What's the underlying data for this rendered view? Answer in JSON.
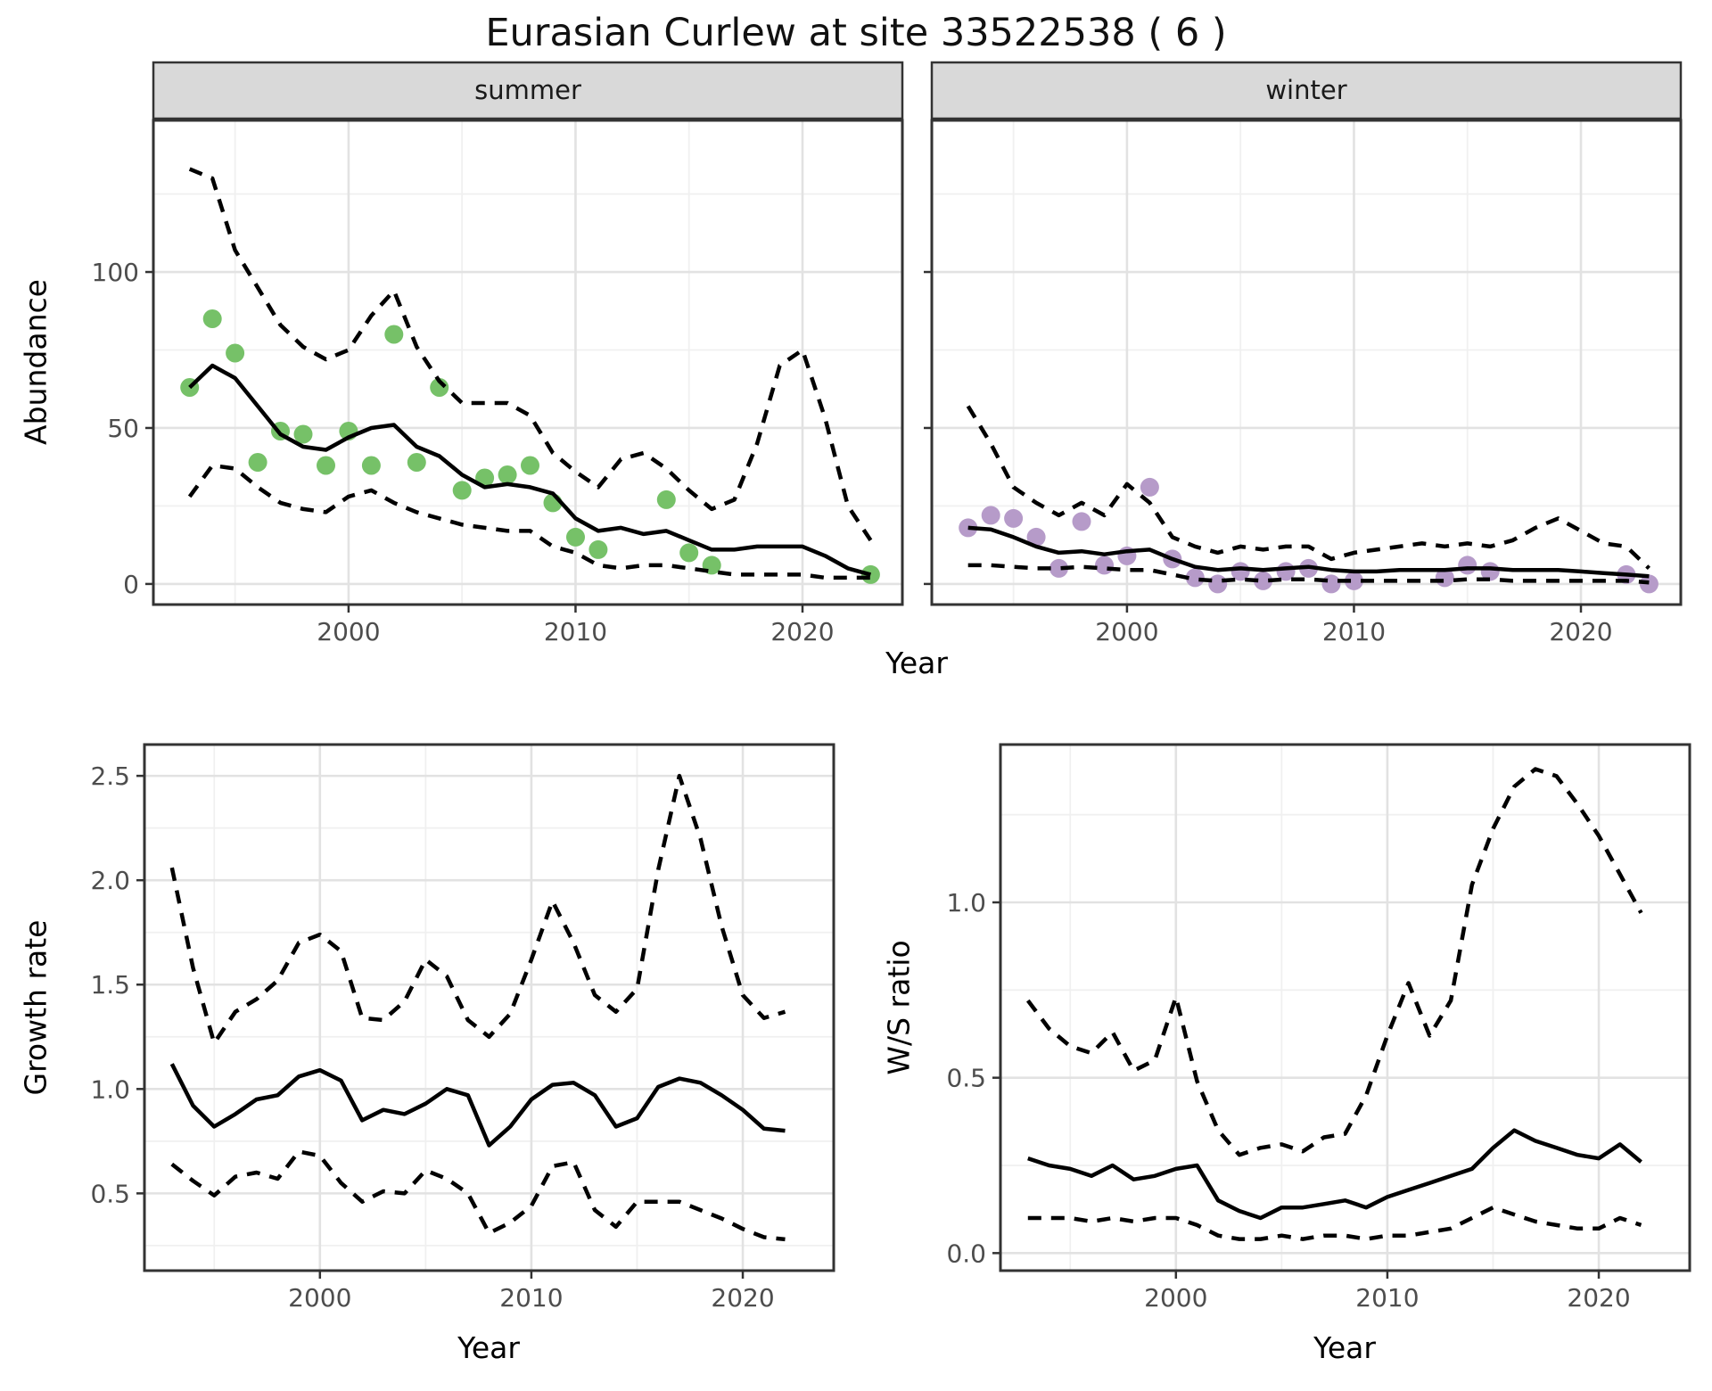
{
  "figure": {
    "title": "Eurasian Curlew at site 33522538 ( 6 )",
    "top_xlabel": "Year",
    "bottom_left_xlabel": "Year",
    "bottom_right_xlabel": "Year"
  },
  "colors": {
    "summer_points": "#76C168",
    "winter_points": "#B69BC9",
    "line": "#000000",
    "strip_bg": "#D9D9D9",
    "panel_border": "#333333",
    "grid_major": "#E2E2E2",
    "grid_minor": "#F0F0F0",
    "tick_text": "#4D4D4D"
  },
  "chart_data": [
    {
      "panel_id": "abundance-summer",
      "type": "line",
      "facet": "summer",
      "xlabel": "Year",
      "ylabel": "Abundance",
      "xlim": [
        1991.4,
        2024.4
      ],
      "ylim": [
        -6.6,
        148.6
      ],
      "xticks": [
        2000,
        2010,
        2020
      ],
      "xticks_minor": [
        1995,
        2005,
        2015
      ],
      "yticks": [
        0,
        50,
        100
      ],
      "ytick_labels": [
        "0",
        "50",
        "100"
      ],
      "yticks_minor": [
        25,
        75,
        125
      ],
      "show_ylabels": true,
      "legend": "none",
      "grid": true,
      "series": [
        {
          "name": "observed count",
          "kind": "scatter",
          "color": "#76C168",
          "x": [
            1993,
            1994,
            1995,
            1996,
            1997,
            1998,
            1999,
            2000,
            2001,
            2002,
            2003,
            2004,
            2005,
            2006,
            2007,
            2008,
            2009,
            2010,
            2011,
            2014,
            2015,
            2016,
            2023
          ],
          "y": [
            63,
            85,
            74,
            39,
            49,
            48,
            38,
            49,
            38,
            80,
            39,
            63,
            30,
            34,
            35,
            38,
            26,
            15,
            11,
            27,
            10,
            6,
            3
          ]
        },
        {
          "name": "model fit",
          "kind": "line",
          "dash": "solid",
          "x": [
            1993,
            1994,
            1995,
            1996,
            1997,
            1998,
            1999,
            2000,
            2001,
            2002,
            2003,
            2004,
            2005,
            2006,
            2007,
            2008,
            2009,
            2010,
            2011,
            2012,
            2013,
            2014,
            2015,
            2016,
            2017,
            2018,
            2019,
            2020,
            2021,
            2022,
            2023
          ],
          "y": [
            63,
            70,
            66,
            57,
            48,
            44,
            43,
            47,
            50,
            51,
            44,
            41,
            35,
            31,
            32,
            31,
            29,
            21,
            17,
            18,
            16,
            17,
            14,
            11,
            11,
            12,
            12,
            12,
            9,
            5,
            3
          ]
        },
        {
          "name": "upper CI",
          "kind": "line",
          "dash": "dashed",
          "x": [
            1993,
            1994,
            1995,
            1996,
            1997,
            1998,
            1999,
            2000,
            2001,
            2002,
            2003,
            2004,
            2005,
            2006,
            2007,
            2008,
            2009,
            2010,
            2011,
            2012,
            2013,
            2014,
            2015,
            2016,
            2017,
            2018,
            2019,
            2020,
            2021,
            2022,
            2023
          ],
          "y": [
            133,
            130,
            107,
            95,
            83,
            76,
            72,
            75,
            86,
            94,
            76,
            65,
            58,
            58,
            58,
            54,
            42,
            36,
            31,
            40,
            42,
            37,
            30,
            24,
            27,
            45,
            70,
            75,
            53,
            25,
            14
          ]
        },
        {
          "name": "lower CI",
          "kind": "line",
          "dash": "dashed",
          "x": [
            1993,
            1994,
            1995,
            1996,
            1997,
            1998,
            1999,
            2000,
            2001,
            2002,
            2003,
            2004,
            2005,
            2006,
            2007,
            2008,
            2009,
            2010,
            2011,
            2012,
            2013,
            2014,
            2015,
            2016,
            2017,
            2018,
            2019,
            2020,
            2021,
            2022,
            2023
          ],
          "y": [
            28,
            38,
            37,
            31,
            26,
            24,
            23,
            28,
            30,
            26,
            23,
            21,
            19,
            18,
            17,
            17,
            12,
            10,
            6,
            5,
            6,
            6,
            5,
            4,
            3,
            3,
            3,
            3,
            2,
            2,
            2
          ]
        }
      ]
    },
    {
      "panel_id": "abundance-winter",
      "type": "line",
      "facet": "winter",
      "xlabel": "Year",
      "ylabel": "Abundance",
      "xlim": [
        1991.4,
        2024.4
      ],
      "ylim": [
        -6.6,
        148.6
      ],
      "xticks": [
        2000,
        2010,
        2020
      ],
      "xticks_minor": [
        1995,
        2005,
        2015
      ],
      "yticks": [
        0,
        50,
        100
      ],
      "ytick_labels": [
        "0",
        "50",
        "100"
      ],
      "yticks_minor": [
        25,
        75,
        125
      ],
      "show_ylabels": false,
      "legend": "none",
      "grid": true,
      "series": [
        {
          "name": "observed count",
          "kind": "scatter",
          "color": "#B69BC9",
          "x": [
            1993,
            1994,
            1995,
            1996,
            1997,
            1998,
            1999,
            2000,
            2001,
            2002,
            2003,
            2004,
            2005,
            2006,
            2007,
            2008,
            2009,
            2010,
            2014,
            2015,
            2016,
            2022,
            2023
          ],
          "y": [
            18,
            22,
            21,
            15,
            5,
            20,
            6,
            9,
            31,
            8,
            2,
            0,
            4,
            1,
            4,
            5,
            0,
            1,
            2,
            6,
            4,
            3,
            0
          ]
        },
        {
          "name": "model fit",
          "kind": "line",
          "dash": "solid",
          "x": [
            1993,
            1994,
            1995,
            1996,
            1997,
            1998,
            1999,
            2000,
            2001,
            2002,
            2003,
            2004,
            2005,
            2006,
            2007,
            2008,
            2009,
            2010,
            2011,
            2012,
            2013,
            2014,
            2015,
            2016,
            2017,
            2018,
            2019,
            2020,
            2021,
            2022,
            2023
          ],
          "y": [
            18,
            17.5,
            15,
            12,
            10,
            10.5,
            9.5,
            10.5,
            11,
            8,
            5.5,
            4.5,
            5,
            4.5,
            5,
            5.5,
            4.5,
            4,
            4,
            4.5,
            4.5,
            4.5,
            5,
            5,
            4.5,
            4.5,
            4.5,
            4,
            3.5,
            3,
            2.5
          ]
        },
        {
          "name": "upper CI",
          "kind": "line",
          "dash": "dashed",
          "x": [
            1993,
            1994,
            1995,
            1996,
            1997,
            1998,
            1999,
            2000,
            2001,
            2002,
            2003,
            2004,
            2005,
            2006,
            2007,
            2008,
            2009,
            2010,
            2011,
            2012,
            2013,
            2014,
            2015,
            2016,
            2017,
            2018,
            2019,
            2020,
            2021,
            2022,
            2023
          ],
          "y": [
            57,
            45,
            31,
            26,
            22,
            26,
            22,
            32,
            26,
            15,
            12,
            10,
            12,
            11,
            12,
            12,
            8,
            10,
            11,
            12,
            13,
            12,
            13,
            12,
            14,
            18,
            21,
            17,
            13,
            12,
            5
          ]
        },
        {
          "name": "lower CI",
          "kind": "line",
          "dash": "dashed",
          "x": [
            1993,
            1994,
            1995,
            1996,
            1997,
            1998,
            1999,
            2000,
            2001,
            2002,
            2003,
            2004,
            2005,
            2006,
            2007,
            2008,
            2009,
            2010,
            2011,
            2012,
            2013,
            2014,
            2015,
            2016,
            2017,
            2018,
            2019,
            2020,
            2021,
            2022,
            2023
          ],
          "y": [
            6,
            6,
            5.5,
            5,
            5,
            5.5,
            5,
            4.5,
            4.5,
            3,
            1.5,
            1,
            1.5,
            1,
            1.5,
            1.5,
            1,
            1,
            1,
            1,
            1,
            1,
            1.5,
            1.5,
            1,
            1,
            1,
            1,
            1,
            1,
            0.5
          ]
        }
      ]
    },
    {
      "panel_id": "growth-rate",
      "type": "line",
      "facet": null,
      "xlabel": "Year",
      "ylabel": "Growth rate",
      "xlim": [
        1991.7,
        2024.3
      ],
      "ylim": [
        0.13,
        2.65
      ],
      "xticks": [
        2000,
        2010,
        2020
      ],
      "xticks_minor": [
        1995,
        2005,
        2015
      ],
      "yticks": [
        0.5,
        1.0,
        1.5,
        2.0,
        2.5
      ],
      "ytick_labels": [
        "0.5",
        "1.0",
        "1.5",
        "2.0",
        "2.5"
      ],
      "yticks_minor": [
        0.25,
        0.75,
        1.25,
        1.75,
        2.25
      ],
      "show_ylabels": true,
      "legend": "none",
      "grid": true,
      "series": [
        {
          "name": "median growth rate",
          "kind": "line",
          "dash": "solid",
          "x": [
            1993,
            1994,
            1995,
            1996,
            1997,
            1998,
            1999,
            2000,
            2001,
            2002,
            2003,
            2004,
            2005,
            2006,
            2007,
            2008,
            2009,
            2010,
            2011,
            2012,
            2013,
            2014,
            2015,
            2016,
            2017,
            2018,
            2019,
            2020,
            2021,
            2022
          ],
          "y": [
            1.12,
            0.92,
            0.82,
            0.88,
            0.95,
            0.97,
            1.06,
            1.09,
            1.04,
            0.85,
            0.9,
            0.88,
            0.93,
            1.0,
            0.97,
            0.73,
            0.82,
            0.95,
            1.02,
            1.03,
            0.97,
            0.82,
            0.86,
            1.01,
            1.05,
            1.03,
            0.97,
            0.9,
            0.81,
            0.8
          ]
        },
        {
          "name": "upper CI",
          "kind": "line",
          "dash": "dashed",
          "x": [
            1993,
            1994,
            1995,
            1996,
            1997,
            1998,
            1999,
            2000,
            2001,
            2002,
            2003,
            2004,
            2005,
            2006,
            2007,
            2008,
            2009,
            2010,
            2011,
            2012,
            2013,
            2014,
            2015,
            2016,
            2017,
            2018,
            2019,
            2020,
            2021,
            2022
          ],
          "y": [
            2.06,
            1.58,
            1.22,
            1.37,
            1.43,
            1.52,
            1.7,
            1.74,
            1.66,
            1.34,
            1.33,
            1.42,
            1.62,
            1.54,
            1.33,
            1.25,
            1.36,
            1.62,
            1.9,
            1.7,
            1.45,
            1.37,
            1.48,
            2.05,
            2.5,
            2.2,
            1.78,
            1.45,
            1.34,
            1.37
          ]
        },
        {
          "name": "lower CI",
          "kind": "line",
          "dash": "dashed",
          "x": [
            1993,
            1994,
            1995,
            1996,
            1997,
            1998,
            1999,
            2000,
            2001,
            2002,
            2003,
            2004,
            2005,
            2006,
            2007,
            2008,
            2009,
            2010,
            2011,
            2012,
            2013,
            2014,
            2015,
            2016,
            2017,
            2018,
            2019,
            2020,
            2021,
            2022
          ],
          "y": [
            0.64,
            0.56,
            0.49,
            0.58,
            0.6,
            0.57,
            0.7,
            0.68,
            0.55,
            0.46,
            0.51,
            0.5,
            0.61,
            0.57,
            0.5,
            0.31,
            0.36,
            0.44,
            0.63,
            0.65,
            0.42,
            0.34,
            0.46,
            0.46,
            0.46,
            0.42,
            0.38,
            0.33,
            0.29,
            0.28
          ]
        }
      ]
    },
    {
      "panel_id": "ws-ratio",
      "type": "line",
      "facet": null,
      "xlabel": "Year",
      "ylabel": "W/S ratio",
      "xlim": [
        1991.7,
        2024.3
      ],
      "ylim": [
        -0.05,
        1.45
      ],
      "xticks": [
        2000,
        2010,
        2020
      ],
      "xticks_minor": [
        1995,
        2005,
        2015
      ],
      "yticks": [
        0.0,
        0.5,
        1.0
      ],
      "ytick_labels": [
        "0.0",
        "0.5",
        "1.0"
      ],
      "yticks_minor": [
        0.25,
        0.75,
        1.25
      ],
      "show_ylabels": true,
      "legend": "none",
      "grid": true,
      "series": [
        {
          "name": "median W/S ratio",
          "kind": "line",
          "dash": "solid",
          "x": [
            1993,
            1994,
            1995,
            1996,
            1997,
            1998,
            1999,
            2000,
            2001,
            2002,
            2003,
            2004,
            2005,
            2006,
            2007,
            2008,
            2009,
            2010,
            2011,
            2012,
            2013,
            2014,
            2015,
            2016,
            2017,
            2018,
            2019,
            2020,
            2021,
            2022
          ],
          "y": [
            0.27,
            0.25,
            0.24,
            0.22,
            0.25,
            0.21,
            0.22,
            0.24,
            0.25,
            0.15,
            0.12,
            0.1,
            0.13,
            0.13,
            0.14,
            0.15,
            0.13,
            0.16,
            0.18,
            0.2,
            0.22,
            0.24,
            0.3,
            0.35,
            0.32,
            0.3,
            0.28,
            0.27,
            0.31,
            0.26
          ]
        },
        {
          "name": "upper CI",
          "kind": "line",
          "dash": "dashed",
          "x": [
            1993,
            1994,
            1995,
            1996,
            1997,
            1998,
            1999,
            2000,
            2001,
            2002,
            2003,
            2004,
            2005,
            2006,
            2007,
            2008,
            2009,
            2010,
            2011,
            2012,
            2013,
            2014,
            2015,
            2016,
            2017,
            2018,
            2019,
            2020,
            2021,
            2022
          ],
          "y": [
            0.72,
            0.64,
            0.59,
            0.57,
            0.63,
            0.52,
            0.55,
            0.73,
            0.49,
            0.35,
            0.28,
            0.3,
            0.31,
            0.29,
            0.33,
            0.34,
            0.45,
            0.62,
            0.77,
            0.62,
            0.72,
            1.05,
            1.21,
            1.33,
            1.38,
            1.36,
            1.28,
            1.19,
            1.08,
            0.97
          ]
        },
        {
          "name": "lower CI",
          "kind": "line",
          "dash": "dashed",
          "x": [
            1993,
            1994,
            1995,
            1996,
            1997,
            1998,
            1999,
            2000,
            2001,
            2002,
            2003,
            2004,
            2005,
            2006,
            2007,
            2008,
            2009,
            2010,
            2011,
            2012,
            2013,
            2014,
            2015,
            2016,
            2017,
            2018,
            2019,
            2020,
            2021,
            2022
          ],
          "y": [
            0.1,
            0.1,
            0.1,
            0.09,
            0.1,
            0.09,
            0.1,
            0.1,
            0.08,
            0.05,
            0.04,
            0.04,
            0.05,
            0.04,
            0.05,
            0.05,
            0.04,
            0.05,
            0.05,
            0.06,
            0.07,
            0.1,
            0.13,
            0.11,
            0.09,
            0.08,
            0.07,
            0.07,
            0.1,
            0.08
          ]
        }
      ]
    }
  ]
}
